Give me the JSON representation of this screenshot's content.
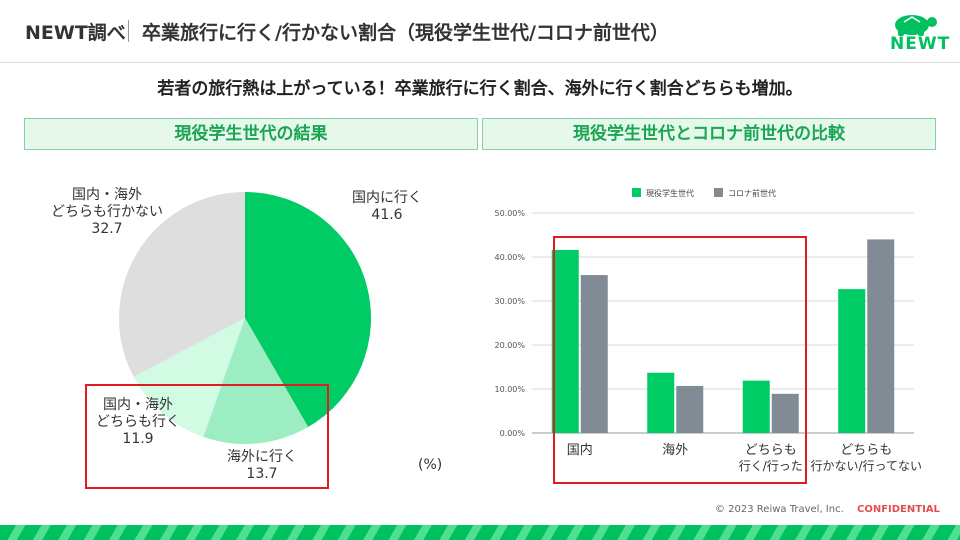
{
  "header": {
    "brand": "NEWT調べ",
    "title": "卒業旅行に行く/行かない割合（現役学生世代/コロナ前世代）",
    "logo_text": "NEWT"
  },
  "headline": "若者の旅行熱は上がっている！卒業旅行に行く割合、海外に行く割合どちらも増加。",
  "left_panel": {
    "title": "現役学生世代の結果",
    "unit": "(%)"
  },
  "right_panel": {
    "title": "現役学生世代とコロナ前世代の比較"
  },
  "footer": {
    "copyright": "© 2023 Reiwa Travel, Inc.",
    "confidential": "CONFIDENTIAL"
  },
  "colors": {
    "brand_green": "#00c060",
    "current_gen": "#00cc66",
    "pre_covid_gen": "#808b96",
    "highlight": "#e01c22"
  },
  "chart_data": [
    {
      "type": "pie",
      "slices": [
        {
          "label_line1": "国内に行く",
          "label_line2": "",
          "value": 41.6,
          "color": "#00cc66"
        },
        {
          "label_line1": "海外に行く",
          "label_line2": "",
          "value": 13.7,
          "color": "#9ceec2"
        },
        {
          "label_line1": "国内・海外",
          "label_line2": "どちらも行く",
          "value": 11.9,
          "color": "#d2fbe3"
        },
        {
          "label_line1": "国内・海外",
          "label_line2": "どちらも行かない",
          "value": 32.7,
          "color": "#dedede"
        }
      ]
    },
    {
      "type": "bar",
      "categories": [
        {
          "line1": "国内",
          "line2": ""
        },
        {
          "line1": "海外",
          "line2": ""
        },
        {
          "line1": "どちらも",
          "line2": "行く/行った"
        },
        {
          "line1": "どちらも",
          "line2": "行かない/行ってない"
        }
      ],
      "series": [
        {
          "name": "現役学生世代",
          "color": "#00cc66",
          "values": [
            41.6,
            13.7,
            11.9,
            32.7
          ]
        },
        {
          "name": "コロナ前世代",
          "color": "#808b96",
          "values": [
            35.9,
            10.7,
            8.9,
            44.0
          ]
        }
      ],
      "ylim": [
        0,
        50
      ],
      "yticks": [
        "0.00%",
        "10.00%",
        "20.00%",
        "30.00%",
        "40.00%",
        "50.00%"
      ],
      "grid": true,
      "legend": "top-left"
    }
  ]
}
